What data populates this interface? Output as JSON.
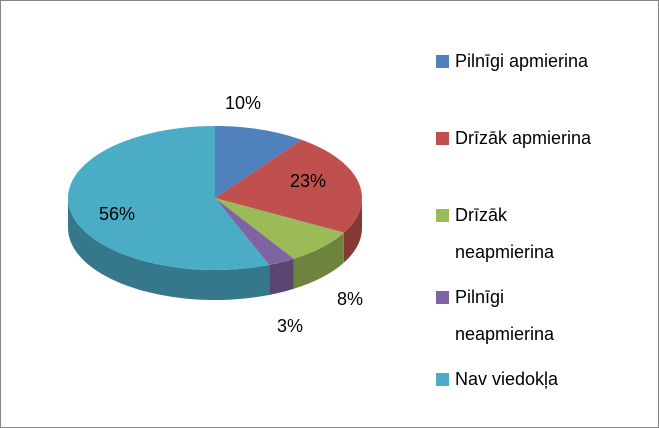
{
  "chart_data": {
    "type": "pie",
    "three_d": true,
    "categories": [
      "Pilnīgi apmierina",
      "Drīzāk apmierina",
      "Drīzāk neapmierina",
      "Pilnīgi neapmierina",
      "Nav viedokļa"
    ],
    "values": [
      10,
      23,
      8,
      3,
      56
    ],
    "value_labels": [
      "10%",
      "23%",
      "8%",
      "3%",
      "56%"
    ],
    "colors": [
      "#4f81bd",
      "#c0504d",
      "#9bbb59",
      "#8064a2",
      "#4bacc6"
    ],
    "legend": "right"
  }
}
